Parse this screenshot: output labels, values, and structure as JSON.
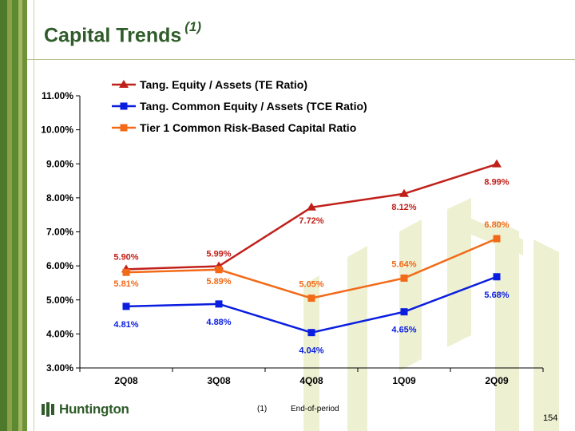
{
  "slide": {
    "title": "Capital Trends",
    "title_superscript": "(1)",
    "footnote_number": "(1)",
    "footnote_text": "End-of-period",
    "page_number": "154",
    "logo_text": "Huntington"
  },
  "colors": {
    "title": "#2f5c2a",
    "tang_equity": "#c0201a",
    "tang_common_equity": "#0a1ee0",
    "tier1": "#f26a18",
    "watermark": "#eef0d2"
  },
  "chart_data": {
    "type": "line",
    "categories": [
      "2Q08",
      "3Q08",
      "4Q08",
      "1Q09",
      "2Q09"
    ],
    "ylim": [
      3.0,
      11.0
    ],
    "yticks": [
      "3.00%",
      "4.00%",
      "5.00%",
      "6.00%",
      "7.00%",
      "8.00%",
      "9.00%",
      "10.00%",
      "11.00%"
    ],
    "legend_position": "top",
    "grid": false,
    "series": [
      {
        "name": "Tang. Equity / Assets (TE Ratio)",
        "marker": "triangle",
        "values": [
          5.9,
          5.99,
          7.72,
          8.12,
          8.99
        ],
        "labels": [
          "5.90%",
          "5.99%",
          "7.72%",
          "8.12%",
          "8.99%"
        ]
      },
      {
        "name": "Tang. Common Equity / Assets (TCE Ratio)",
        "marker": "square",
        "values": [
          4.81,
          4.88,
          4.04,
          4.65,
          5.68
        ],
        "labels": [
          "4.81%",
          "4.88%",
          "4.04%",
          "4.65%",
          "5.68%"
        ]
      },
      {
        "name": "Tier 1 Common Risk-Based Capital Ratio",
        "marker": "square",
        "values": [
          5.81,
          5.89,
          5.05,
          5.64,
          6.8
        ],
        "labels": [
          "5.81%",
          "5.89%",
          "5.05%",
          "5.64%",
          "6.80%"
        ]
      }
    ]
  }
}
